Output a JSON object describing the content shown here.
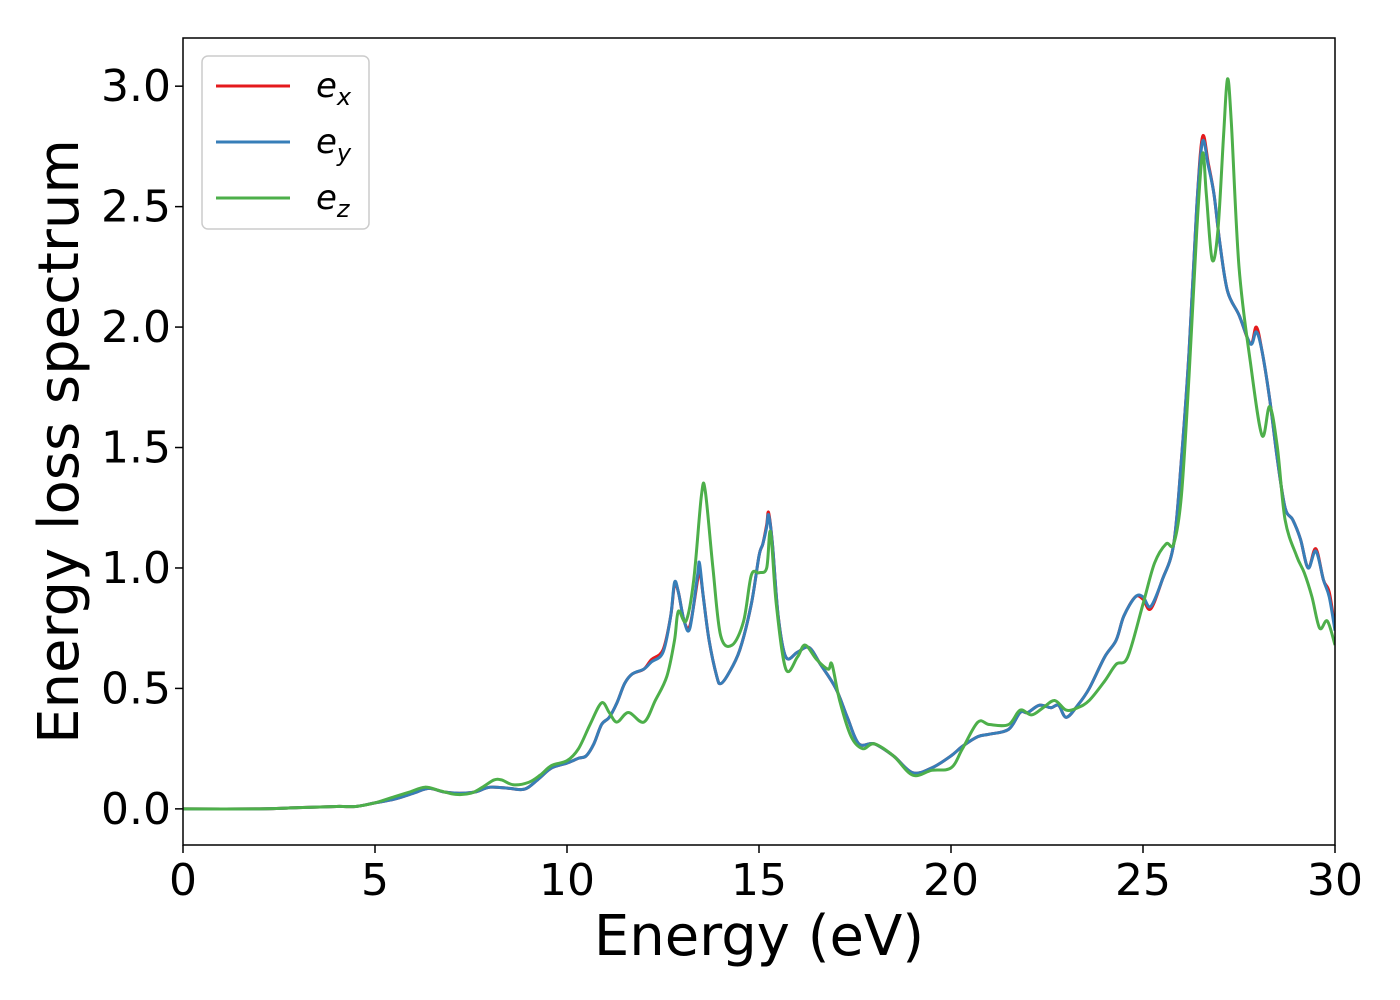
{
  "chart_data": {
    "type": "line",
    "title": "",
    "xlabel": "Energy (eV)",
    "ylabel": "Energy loss spectrum",
    "xlim": [
      0,
      30
    ],
    "ylim": [
      -0.15,
      3.2
    ],
    "xticks": [
      0,
      5,
      10,
      15,
      20,
      25,
      30
    ],
    "xtick_labels": [
      "0",
      "5",
      "10",
      "15",
      "20",
      "25",
      "30"
    ],
    "yticks": [
      0.0,
      0.5,
      1.0,
      1.5,
      2.0,
      2.5,
      3.0
    ],
    "ytick_labels": [
      "0.0",
      "0.5",
      "1.0",
      "1.5",
      "2.0",
      "2.5",
      "3.0"
    ],
    "grid": false,
    "legend_position": "top-left",
    "series": [
      {
        "name": "e",
        "subscript": "x",
        "color": "#e41a1c",
        "points": [
          [
            0,
            0
          ],
          [
            2,
            0.0
          ],
          [
            3,
            0.005
          ],
          [
            4,
            0.01
          ],
          [
            4.5,
            0.01
          ],
          [
            5,
            0.025
          ],
          [
            5.5,
            0.04
          ],
          [
            6,
            0.065
          ],
          [
            6.4,
            0.085
          ],
          [
            6.8,
            0.07
          ],
          [
            7.2,
            0.065
          ],
          [
            7.6,
            0.07
          ],
          [
            8,
            0.09
          ],
          [
            8.5,
            0.085
          ],
          [
            8.8,
            0.08
          ],
          [
            9,
            0.09
          ],
          [
            9.3,
            0.13
          ],
          [
            9.6,
            0.17
          ],
          [
            10,
            0.19
          ],
          [
            10.3,
            0.21
          ],
          [
            10.5,
            0.22
          ],
          [
            10.7,
            0.27
          ],
          [
            10.9,
            0.35
          ],
          [
            11.1,
            0.38
          ],
          [
            11.3,
            0.44
          ],
          [
            11.5,
            0.52
          ],
          [
            11.7,
            0.56
          ],
          [
            12,
            0.58
          ],
          [
            12.2,
            0.62
          ],
          [
            12.5,
            0.66
          ],
          [
            12.7,
            0.8
          ],
          [
            12.8,
            0.93
          ],
          [
            12.9,
            0.9
          ],
          [
            13.05,
            0.78
          ],
          [
            13.2,
            0.76
          ],
          [
            13.4,
            0.95
          ],
          [
            13.45,
            1.0
          ],
          [
            13.55,
            0.88
          ],
          [
            13.7,
            0.7
          ],
          [
            13.9,
            0.55
          ],
          [
            14,
            0.52
          ],
          [
            14.2,
            0.56
          ],
          [
            14.5,
            0.66
          ],
          [
            14.8,
            0.85
          ],
          [
            15,
            1.05
          ],
          [
            15.1,
            1.1
          ],
          [
            15.2,
            1.18
          ],
          [
            15.25,
            1.23
          ],
          [
            15.35,
            1.1
          ],
          [
            15.5,
            0.8
          ],
          [
            15.7,
            0.63
          ],
          [
            16,
            0.65
          ],
          [
            16.3,
            0.67
          ],
          [
            16.6,
            0.6
          ],
          [
            17,
            0.5
          ],
          [
            17.3,
            0.38
          ],
          [
            17.6,
            0.27
          ],
          [
            18,
            0.27
          ],
          [
            18.5,
            0.22
          ],
          [
            19,
            0.15
          ],
          [
            19.5,
            0.17
          ],
          [
            20,
            0.22
          ],
          [
            20.3,
            0.26
          ],
          [
            20.7,
            0.3
          ],
          [
            21,
            0.31
          ],
          [
            21.5,
            0.33
          ],
          [
            21.8,
            0.4
          ],
          [
            22,
            0.4
          ],
          [
            22.3,
            0.43
          ],
          [
            22.6,
            0.42
          ],
          [
            22.8,
            0.43
          ],
          [
            23,
            0.38
          ],
          [
            23.3,
            0.43
          ],
          [
            23.6,
            0.5
          ],
          [
            24,
            0.63
          ],
          [
            24.3,
            0.7
          ],
          [
            24.5,
            0.8
          ],
          [
            24.8,
            0.88
          ],
          [
            25,
            0.87
          ],
          [
            25.2,
            0.83
          ],
          [
            25.5,
            0.95
          ],
          [
            25.8,
            1.1
          ],
          [
            26,
            1.45
          ],
          [
            26.2,
            1.9
          ],
          [
            26.4,
            2.5
          ],
          [
            26.55,
            2.79
          ],
          [
            26.7,
            2.68
          ],
          [
            26.85,
            2.55
          ],
          [
            27,
            2.35
          ],
          [
            27.2,
            2.15
          ],
          [
            27.5,
            2.05
          ],
          [
            27.8,
            1.93
          ],
          [
            27.95,
            2.0
          ],
          [
            28.1,
            1.9
          ],
          [
            28.3,
            1.7
          ],
          [
            28.5,
            1.45
          ],
          [
            28.7,
            1.25
          ],
          [
            28.9,
            1.2
          ],
          [
            29.1,
            1.12
          ],
          [
            29.3,
            1.0
          ],
          [
            29.5,
            1.08
          ],
          [
            29.7,
            0.95
          ],
          [
            29.85,
            0.9
          ],
          [
            30,
            0.75
          ]
        ]
      },
      {
        "name": "e",
        "subscript": "y",
        "color": "#377eb8",
        "points": [
          [
            0,
            0
          ],
          [
            2,
            0.0
          ],
          [
            3,
            0.005
          ],
          [
            4,
            0.01
          ],
          [
            4.5,
            0.01
          ],
          [
            5,
            0.025
          ],
          [
            5.5,
            0.04
          ],
          [
            6,
            0.065
          ],
          [
            6.4,
            0.085
          ],
          [
            6.8,
            0.07
          ],
          [
            7.2,
            0.065
          ],
          [
            7.6,
            0.07
          ],
          [
            8,
            0.09
          ],
          [
            8.5,
            0.085
          ],
          [
            8.8,
            0.08
          ],
          [
            9,
            0.09
          ],
          [
            9.3,
            0.13
          ],
          [
            9.6,
            0.17
          ],
          [
            10,
            0.19
          ],
          [
            10.3,
            0.21
          ],
          [
            10.5,
            0.22
          ],
          [
            10.7,
            0.27
          ],
          [
            10.9,
            0.35
          ],
          [
            11.1,
            0.38
          ],
          [
            11.3,
            0.44
          ],
          [
            11.5,
            0.52
          ],
          [
            11.7,
            0.56
          ],
          [
            12,
            0.58
          ],
          [
            12.2,
            0.61
          ],
          [
            12.5,
            0.65
          ],
          [
            12.7,
            0.8
          ],
          [
            12.8,
            0.94
          ],
          [
            12.9,
            0.9
          ],
          [
            13.05,
            0.78
          ],
          [
            13.2,
            0.75
          ],
          [
            13.4,
            0.97
          ],
          [
            13.45,
            1.02
          ],
          [
            13.55,
            0.88
          ],
          [
            13.7,
            0.7
          ],
          [
            13.9,
            0.55
          ],
          [
            14,
            0.52
          ],
          [
            14.2,
            0.56
          ],
          [
            14.5,
            0.66
          ],
          [
            14.8,
            0.85
          ],
          [
            15,
            1.05
          ],
          [
            15.1,
            1.1
          ],
          [
            15.2,
            1.17
          ],
          [
            15.25,
            1.22
          ],
          [
            15.35,
            1.1
          ],
          [
            15.5,
            0.8
          ],
          [
            15.7,
            0.63
          ],
          [
            16,
            0.65
          ],
          [
            16.3,
            0.67
          ],
          [
            16.6,
            0.6
          ],
          [
            17,
            0.5
          ],
          [
            17.3,
            0.38
          ],
          [
            17.6,
            0.27
          ],
          [
            18,
            0.27
          ],
          [
            18.5,
            0.22
          ],
          [
            19,
            0.15
          ],
          [
            19.5,
            0.17
          ],
          [
            20,
            0.22
          ],
          [
            20.3,
            0.26
          ],
          [
            20.7,
            0.3
          ],
          [
            21,
            0.31
          ],
          [
            21.5,
            0.33
          ],
          [
            21.8,
            0.4
          ],
          [
            22,
            0.4
          ],
          [
            22.3,
            0.43
          ],
          [
            22.6,
            0.42
          ],
          [
            22.8,
            0.43
          ],
          [
            23,
            0.38
          ],
          [
            23.3,
            0.43
          ],
          [
            23.6,
            0.5
          ],
          [
            24,
            0.63
          ],
          [
            24.3,
            0.7
          ],
          [
            24.5,
            0.8
          ],
          [
            24.8,
            0.88
          ],
          [
            25,
            0.88
          ],
          [
            25.2,
            0.84
          ],
          [
            25.5,
            0.95
          ],
          [
            25.8,
            1.1
          ],
          [
            26,
            1.45
          ],
          [
            26.2,
            1.9
          ],
          [
            26.4,
            2.5
          ],
          [
            26.55,
            2.77
          ],
          [
            26.7,
            2.67
          ],
          [
            26.85,
            2.55
          ],
          [
            27,
            2.35
          ],
          [
            27.2,
            2.15
          ],
          [
            27.5,
            2.05
          ],
          [
            27.8,
            1.93
          ],
          [
            27.95,
            1.98
          ],
          [
            28.1,
            1.9
          ],
          [
            28.3,
            1.7
          ],
          [
            28.5,
            1.45
          ],
          [
            28.7,
            1.25
          ],
          [
            28.9,
            1.2
          ],
          [
            29.1,
            1.12
          ],
          [
            29.3,
            1.0
          ],
          [
            29.5,
            1.07
          ],
          [
            29.7,
            0.95
          ],
          [
            29.85,
            0.88
          ],
          [
            30,
            0.74
          ]
        ]
      },
      {
        "name": "e",
        "subscript": "z",
        "color": "#4daf4a",
        "points": [
          [
            0,
            0
          ],
          [
            2,
            0.0
          ],
          [
            3,
            0.005
          ],
          [
            4,
            0.01
          ],
          [
            4.5,
            0.01
          ],
          [
            5,
            0.025
          ],
          [
            5.5,
            0.05
          ],
          [
            5.9,
            0.07
          ],
          [
            6.3,
            0.09
          ],
          [
            6.7,
            0.075
          ],
          [
            7.1,
            0.06
          ],
          [
            7.5,
            0.065
          ],
          [
            7.8,
            0.09
          ],
          [
            8.1,
            0.12
          ],
          [
            8.3,
            0.12
          ],
          [
            8.6,
            0.1
          ],
          [
            9,
            0.11
          ],
          [
            9.3,
            0.14
          ],
          [
            9.6,
            0.18
          ],
          [
            10,
            0.2
          ],
          [
            10.3,
            0.25
          ],
          [
            10.6,
            0.35
          ],
          [
            10.9,
            0.44
          ],
          [
            11.1,
            0.4
          ],
          [
            11.3,
            0.36
          ],
          [
            11.6,
            0.4
          ],
          [
            12,
            0.36
          ],
          [
            12.3,
            0.45
          ],
          [
            12.6,
            0.55
          ],
          [
            12.8,
            0.7
          ],
          [
            12.9,
            0.82
          ],
          [
            13.1,
            0.78
          ],
          [
            13.3,
            0.95
          ],
          [
            13.5,
            1.3
          ],
          [
            13.6,
            1.32
          ],
          [
            13.8,
            1.0
          ],
          [
            14,
            0.72
          ],
          [
            14.3,
            0.68
          ],
          [
            14.6,
            0.78
          ],
          [
            14.8,
            0.97
          ],
          [
            15,
            0.98
          ],
          [
            15.2,
            1.0
          ],
          [
            15.3,
            1.15
          ],
          [
            15.45,
            0.85
          ],
          [
            15.7,
            0.58
          ],
          [
            16,
            0.63
          ],
          [
            16.2,
            0.68
          ],
          [
            16.5,
            0.62
          ],
          [
            16.8,
            0.58
          ],
          [
            16.9,
            0.6
          ],
          [
            17.1,
            0.45
          ],
          [
            17.4,
            0.3
          ],
          [
            17.7,
            0.25
          ],
          [
            18,
            0.27
          ],
          [
            18.5,
            0.22
          ],
          [
            19,
            0.14
          ],
          [
            19.5,
            0.16
          ],
          [
            20,
            0.17
          ],
          [
            20.3,
            0.25
          ],
          [
            20.7,
            0.36
          ],
          [
            21,
            0.35
          ],
          [
            21.5,
            0.35
          ],
          [
            21.8,
            0.41
          ],
          [
            22.1,
            0.39
          ],
          [
            22.4,
            0.42
          ],
          [
            22.7,
            0.45
          ],
          [
            23,
            0.41
          ],
          [
            23.3,
            0.42
          ],
          [
            23.6,
            0.45
          ],
          [
            24,
            0.53
          ],
          [
            24.3,
            0.6
          ],
          [
            24.6,
            0.63
          ],
          [
            25,
            0.85
          ],
          [
            25.3,
            1.02
          ],
          [
            25.6,
            1.1
          ],
          [
            25.8,
            1.1
          ],
          [
            26,
            1.3
          ],
          [
            26.2,
            1.8
          ],
          [
            26.4,
            2.4
          ],
          [
            26.55,
            2.72
          ],
          [
            26.65,
            2.55
          ],
          [
            26.8,
            2.28
          ],
          [
            26.95,
            2.4
          ],
          [
            27.1,
            2.8
          ],
          [
            27.2,
            3.03
          ],
          [
            27.3,
            2.85
          ],
          [
            27.5,
            2.25
          ],
          [
            27.8,
            1.85
          ],
          [
            28.1,
            1.55
          ],
          [
            28.3,
            1.67
          ],
          [
            28.5,
            1.5
          ],
          [
            28.7,
            1.2
          ],
          [
            29,
            1.05
          ],
          [
            29.2,
            0.98
          ],
          [
            29.4,
            0.88
          ],
          [
            29.6,
            0.75
          ],
          [
            29.8,
            0.78
          ],
          [
            30,
            0.68
          ]
        ]
      }
    ]
  }
}
